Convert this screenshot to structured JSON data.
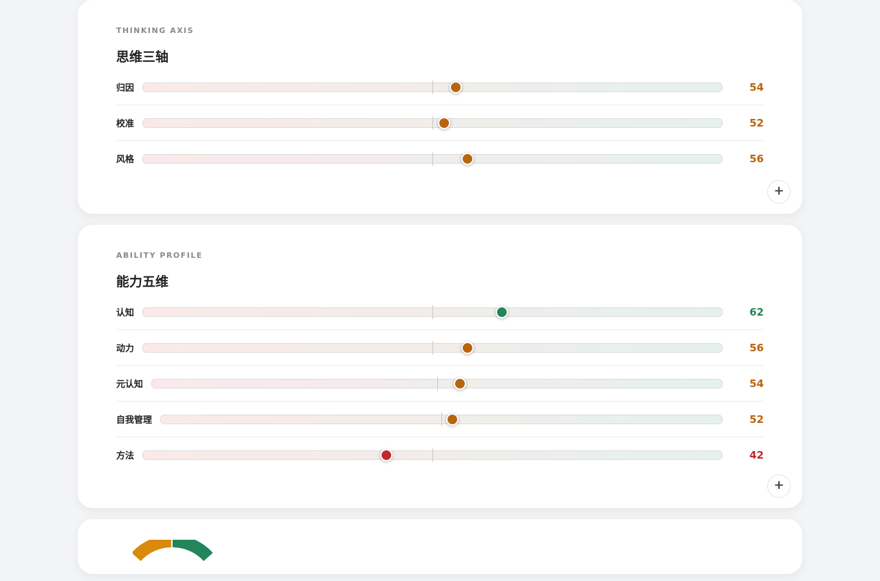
{
  "sections": [
    {
      "eyebrow": "THINKING AXIS",
      "title": "思维三轴",
      "range": [
        0,
        100
      ],
      "items": [
        {
          "label": "归因",
          "value": 54,
          "color": "#b8650f"
        },
        {
          "label": "校准",
          "value": 52,
          "color": "#b8650f"
        },
        {
          "label": "风格",
          "value": 56,
          "color": "#b8650f"
        }
      ]
    },
    {
      "eyebrow": "ABILITY PROFILE",
      "title": "能力五维",
      "range": [
        0,
        100
      ],
      "items": [
        {
          "label": "认知",
          "value": 62,
          "color": "#23855a"
        },
        {
          "label": "动力",
          "value": 56,
          "color": "#b8650f"
        },
        {
          "label": "元认知",
          "value": 54,
          "color": "#b8650f"
        },
        {
          "label": "自我管理",
          "value": 52,
          "color": "#b8650f"
        },
        {
          "label": "方法",
          "value": 42,
          "color": "#c0292f"
        }
      ]
    }
  ]
}
